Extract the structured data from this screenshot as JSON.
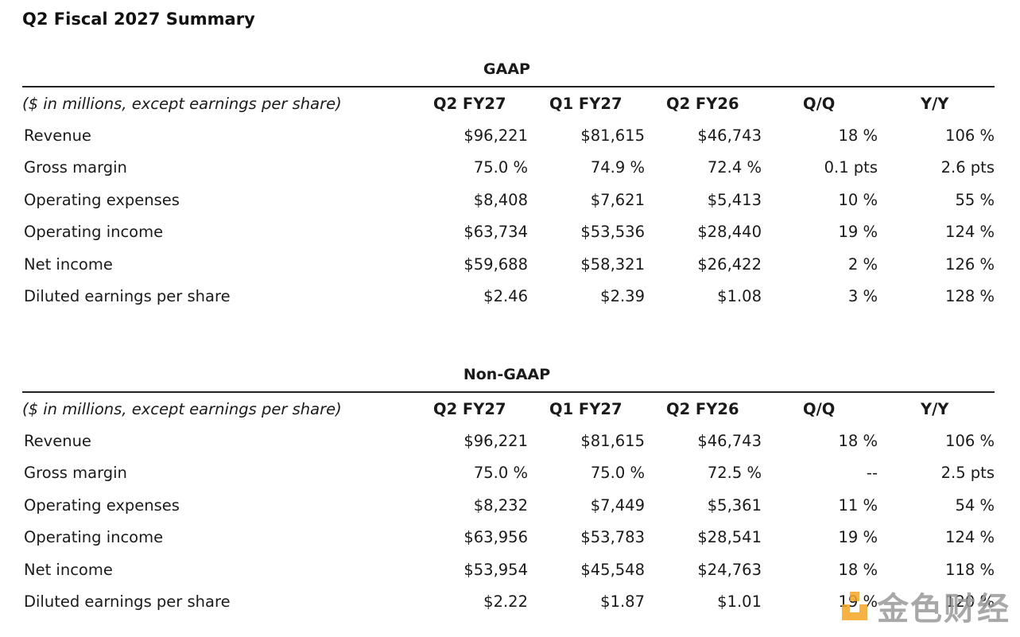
{
  "title": "Q2 Fiscal 2027 Summary",
  "sections": [
    {
      "name": "GAAP",
      "header": {
        "label": "($ in millions, except earnings per share)",
        "cols": [
          "Q2 FY27",
          "Q1 FY27",
          "Q2 FY26",
          "Q/Q",
          "Y/Y"
        ]
      },
      "rows": [
        {
          "label": "Revenue",
          "values": [
            "$96,221",
            "$81,615",
            "$46,743",
            "18 %",
            "106 %"
          ]
        },
        {
          "label": "Gross margin",
          "values": [
            "75.0 %",
            "74.9 %",
            "72.4 %",
            "0.1 pts",
            "2.6 pts"
          ]
        },
        {
          "label": "Operating expenses",
          "values": [
            "$8,408",
            "$7,621",
            "$5,413",
            "10 %",
            "55 %"
          ]
        },
        {
          "label": "Operating income",
          "values": [
            "$63,734",
            "$53,536",
            "$28,440",
            "19 %",
            "124 %"
          ]
        },
        {
          "label": "Net income",
          "values": [
            "$59,688",
            "$58,321",
            "$26,422",
            "2 %",
            "126 %"
          ]
        },
        {
          "label": "Diluted earnings per share",
          "values": [
            "$2.46",
            "$2.39",
            "$1.08",
            "3 %",
            "128 %"
          ]
        }
      ]
    },
    {
      "name": "Non-GAAP",
      "header": {
        "label": "($ in millions, except earnings per share)",
        "cols": [
          "Q2 FY27",
          "Q1 FY27",
          "Q2 FY26",
          "Q/Q",
          "Y/Y"
        ]
      },
      "rows": [
        {
          "label": "Revenue",
          "values": [
            "$96,221",
            "$81,615",
            "$46,743",
            "18 %",
            "106 %"
          ]
        },
        {
          "label": "Gross margin",
          "values": [
            "75.0 %",
            "75.0 %",
            "72.5 %",
            "--",
            "2.5 pts"
          ]
        },
        {
          "label": "Operating expenses",
          "values": [
            "$8,232",
            "$7,449",
            "$5,361",
            "11 %",
            "54 %"
          ]
        },
        {
          "label": "Operating income",
          "values": [
            "$63,956",
            "$53,783",
            "$28,541",
            "19 %",
            "124 %"
          ]
        },
        {
          "label": "Net income",
          "values": [
            "$53,954",
            "$45,548",
            "$24,763",
            "18 %",
            "118 %"
          ]
        },
        {
          "label": "Diluted earnings per share",
          "values": [
            "$2.22",
            "$1.87",
            "$1.01",
            "19 %",
            "120 %"
          ]
        }
      ]
    }
  ],
  "watermark": {
    "text": "金色财经",
    "logo_color": "#f5a623",
    "icon": "jinse-logo-icon"
  }
}
